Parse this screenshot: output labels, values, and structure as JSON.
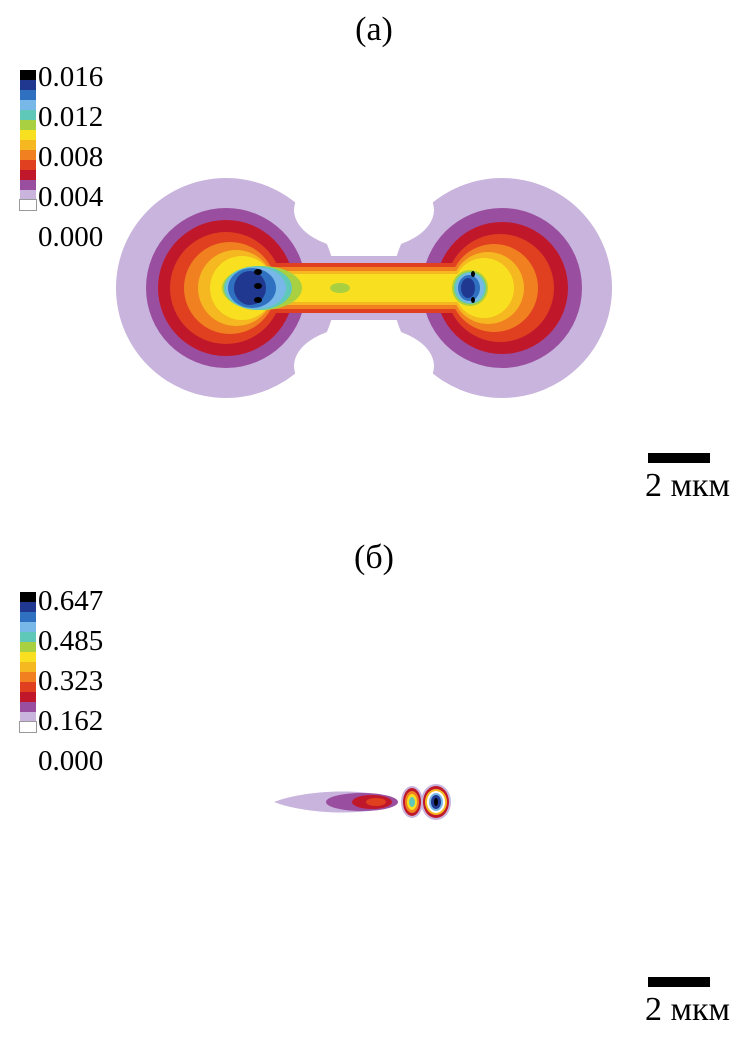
{
  "panels": [
    {
      "label": "(а)",
      "legend_ticks": [
        "0.016",
        "0.012",
        "0.008",
        "0.004",
        "0.000"
      ],
      "scale_label": "2 мкм"
    },
    {
      "label": "(б)",
      "legend_ticks": [
        "0.647",
        "0.485",
        "0.323",
        "0.162",
        "0.000"
      ],
      "scale_label": "2 мкм"
    }
  ],
  "colors": {
    "level_0": "#ffffff",
    "level_1": "#c8b4dc",
    "level_2": "#9a4ea0",
    "level_3": "#c0182a",
    "level_4": "#e04020",
    "level_5": "#f08020",
    "level_6": "#f5b820",
    "level_7": "#f8e020",
    "level_8": "#a8d040",
    "level_9": "#60c8b8",
    "level_10": "#78b8e8",
    "level_11": "#3070c0",
    "level_12": "#203890",
    "level_13": "#000000"
  }
}
